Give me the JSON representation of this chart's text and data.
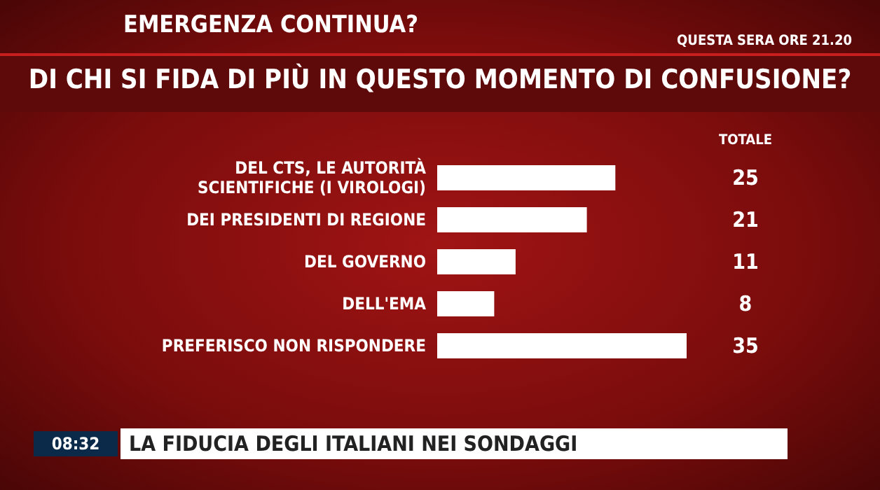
{
  "chart_data": {
    "type": "bar",
    "orientation": "horizontal",
    "title": "DI CHI SI FIDA DI PIÙ IN QUESTO MOMENTO DI CONFUSIONE?",
    "subtitle": "EMERGENZA CONTINUA?",
    "categories": [
      "DEL CTS, LE AUTORITÀ SCIENTIFICHE (I VIROLOGI)",
      "DEI PRESIDENTI DI REGIONE",
      "DEL GOVERNO",
      "DELL'EMA",
      "PREFERISCO NON RISPONDERE"
    ],
    "values": [
      25,
      21,
      11,
      8,
      35
    ],
    "color": "#ffffff",
    "xlim": [
      0,
      35
    ],
    "data_labels": true,
    "grid": false,
    "legend": false,
    "annotations": [
      "TOTALE",
      "QUESTA SERA ORE 21.20",
      "LA FIDUCIA DEGLI ITALIANI NEI SONDAGGI",
      "08:32"
    ]
  }
}
